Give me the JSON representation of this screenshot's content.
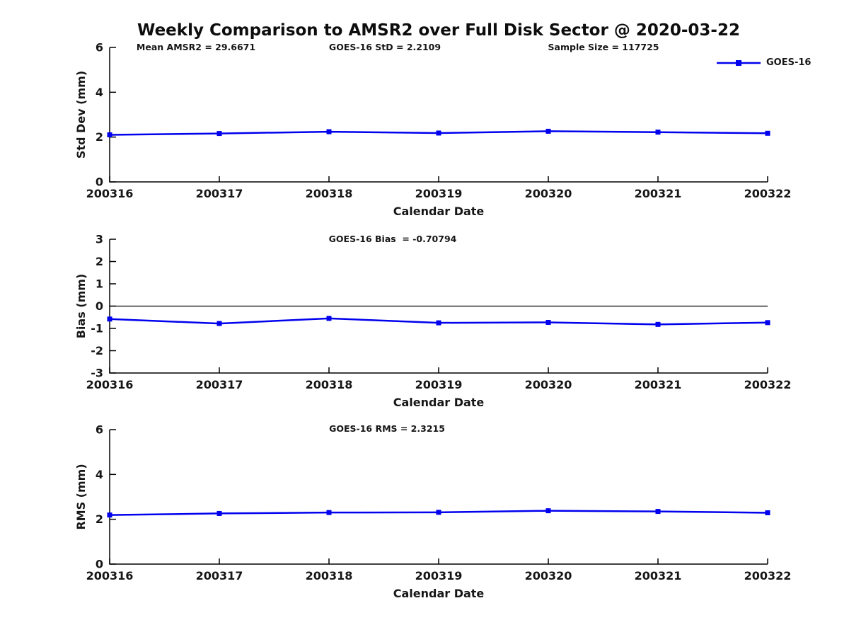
{
  "title": "Weekly Comparison to AMSR2 over Full Disk Sector @ 2020-03-22",
  "colors": {
    "series": "#0000ee",
    "axis": "#000000",
    "zero_line": "#000000",
    "text": "#161616"
  },
  "legend": {
    "label": "GOES-16"
  },
  "chart_data": [
    {
      "type": "line",
      "name": "std-dev-panel",
      "categories": [
        "200316",
        "200317",
        "200318",
        "200319",
        "200320",
        "200321",
        "200322"
      ],
      "series": [
        {
          "name": "GOES-16",
          "values": [
            2.1,
            2.16,
            2.24,
            2.18,
            2.26,
            2.22,
            2.17
          ]
        }
      ],
      "ylabel": "Std Dev (mm)",
      "xlabel": "Calendar Date",
      "ylim": [
        0,
        6
      ],
      "yticks": [
        0,
        2,
        4,
        6
      ],
      "grid": false,
      "zero_line": false,
      "legend_position": "top-right",
      "annotations": [
        "Mean AMSR2 = 29.6671",
        "GOES-16 StD = 2.2109",
        "Sample Size = 117725"
      ]
    },
    {
      "type": "line",
      "name": "bias-panel",
      "categories": [
        "200316",
        "200317",
        "200318",
        "200319",
        "200320",
        "200321",
        "200322"
      ],
      "series": [
        {
          "name": "GOES-16",
          "values": [
            -0.58,
            -0.78,
            -0.55,
            -0.75,
            -0.73,
            -0.82,
            -0.74
          ]
        }
      ],
      "ylabel": "Bias (mm)",
      "xlabel": "Calendar Date",
      "ylim": [
        -3,
        3
      ],
      "yticks": [
        -3,
        -2,
        -1,
        0,
        1,
        2,
        3
      ],
      "grid": false,
      "zero_line": true,
      "annotations": [
        "GOES-16 Bias  = -0.70794"
      ]
    },
    {
      "type": "line",
      "name": "rms-panel",
      "categories": [
        "200316",
        "200317",
        "200318",
        "200319",
        "200320",
        "200321",
        "200322"
      ],
      "series": [
        {
          "name": "GOES-16",
          "values": [
            2.19,
            2.26,
            2.3,
            2.31,
            2.38,
            2.35,
            2.29
          ]
        }
      ],
      "ylabel": "RMS (mm)",
      "xlabel": "Calendar Date",
      "ylim": [
        0,
        6
      ],
      "yticks": [
        0,
        2,
        4,
        6
      ],
      "grid": false,
      "zero_line": false,
      "annotations": [
        "GOES-16 RMS = 2.3215"
      ]
    }
  ]
}
